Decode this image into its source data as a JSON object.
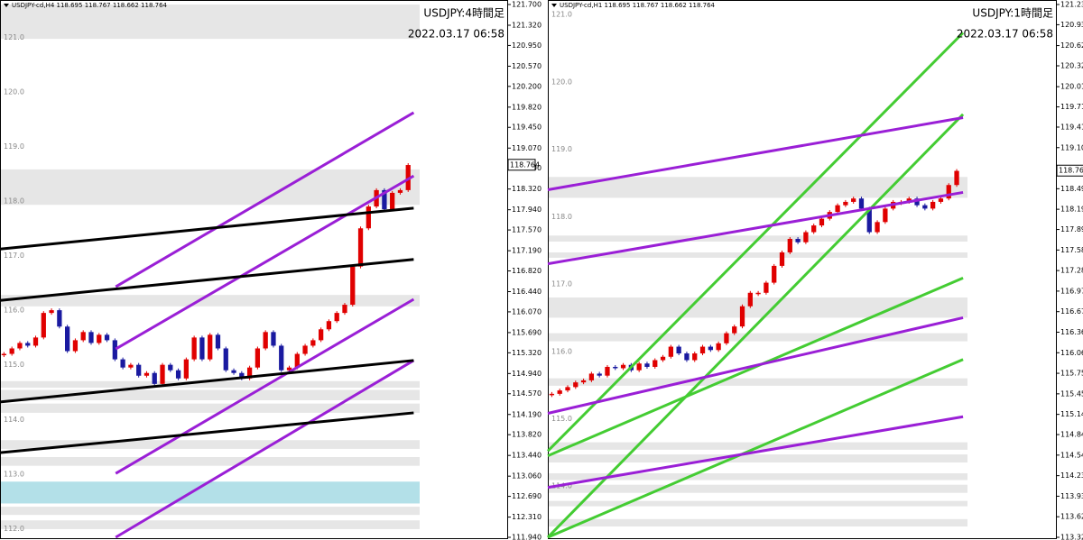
{
  "chart_data": [
    {
      "type": "candlestick",
      "title": "USDJPY-cd,H4  118.695 118.767 118.662 118.764",
      "caption": "USDJPY:4時間足",
      "timestamp": "2022.03.17 06:58",
      "last": 118.764,
      "up_color": "#e00000",
      "down_color": "#1a1aa0",
      "xlim": [
        0,
        64
      ],
      "ylim": [
        111.94,
        121.7
      ],
      "yticks": [
        {
          "value": 121.7,
          "label": "121.700"
        },
        {
          "value": 121.32,
          "label": "121.320"
        },
        {
          "value": 120.95,
          "label": "120.950"
        },
        {
          "value": 120.57,
          "label": "120.570"
        },
        {
          "value": 120.2,
          "label": "120.200"
        },
        {
          "value": 119.82,
          "label": "119.820"
        },
        {
          "value": 119.45,
          "label": "119.450"
        },
        {
          "value": 119.07,
          "label": "119.070"
        },
        {
          "value": 118.7,
          "label": "118.700"
        },
        {
          "value": 118.32,
          "label": "118.320"
        },
        {
          "value": 117.94,
          "label": "117.940"
        },
        {
          "value": 117.57,
          "label": "117.570"
        },
        {
          "value": 117.19,
          "label": "117.190"
        },
        {
          "value": 116.82,
          "label": "116.820"
        },
        {
          "value": 116.44,
          "label": "116.440"
        },
        {
          "value": 116.07,
          "label": "116.070"
        },
        {
          "value": 115.69,
          "label": "115.690"
        },
        {
          "value": 115.32,
          "label": "115.320"
        },
        {
          "value": 114.94,
          "label": "114.940"
        },
        {
          "value": 114.57,
          "label": "114.570"
        },
        {
          "value": 114.19,
          "label": "114.190"
        },
        {
          "value": 113.82,
          "label": "113.820"
        },
        {
          "value": 113.44,
          "label": "113.440"
        },
        {
          "value": 113.06,
          "label": "113.060"
        },
        {
          "value": 112.69,
          "label": "112.690"
        },
        {
          "value": 112.31,
          "label": "112.310"
        },
        {
          "value": 111.94,
          "label": "111.940"
        }
      ],
      "levels": [
        {
          "value": 121,
          "label": "121.0"
        },
        {
          "value": 120,
          "label": "120.0"
        },
        {
          "value": 119,
          "label": "119.0"
        },
        {
          "value": 118,
          "label": "118.0"
        },
        {
          "value": 117,
          "label": "117.0"
        },
        {
          "value": 116,
          "label": "116.0"
        },
        {
          "value": 115,
          "label": "115.0"
        },
        {
          "value": 114,
          "label": "114.0"
        },
        {
          "value": 113,
          "label": "113.0"
        },
        {
          "value": 112,
          "label": "112.0"
        }
      ],
      "zones": [
        {
          "range": [
            121.07,
            121.7
          ],
          "color": "#e6e6e6"
        },
        {
          "range": [
            118.03,
            118.68
          ],
          "color": "#e6e6e6"
        },
        {
          "range": [
            116.17,
            116.38
          ],
          "color": "#e6e6e6"
        },
        {
          "range": [
            114.68,
            114.8
          ],
          "color": "#e6e6e6"
        },
        {
          "range": [
            114.45,
            114.64
          ],
          "color": "#e6e6e6"
        },
        {
          "range": [
            114.22,
            114.39
          ],
          "color": "#e6e6e6"
        },
        {
          "range": [
            113.56,
            113.72
          ],
          "color": "#e6e6e6"
        },
        {
          "range": [
            113.25,
            113.41
          ],
          "color": "#e6e6e6"
        },
        {
          "range": [
            112.56,
            112.96
          ],
          "color": "#b3e0e8"
        },
        {
          "range": [
            112.35,
            112.5
          ],
          "color": "#e6e6e6"
        },
        {
          "range": [
            112.09,
            112.25
          ],
          "color": "#e6e6e6"
        }
      ],
      "values": [
        115.3,
        115.4,
        115.5,
        115.45,
        115.6,
        116.05,
        116.1,
        115.8,
        115.35,
        115.55,
        115.7,
        115.5,
        115.65,
        115.55,
        115.2,
        115.05,
        115.1,
        114.9,
        114.95,
        114.75,
        115.1,
        115.0,
        114.85,
        115.2,
        115.6,
        115.2,
        115.65,
        115.4,
        115.0,
        114.95,
        114.85,
        115.05,
        115.4,
        115.7,
        115.45,
        115.0,
        115.05,
        115.3,
        115.45,
        115.55,
        115.75,
        115.9,
        116.05,
        116.2,
        116.9,
        117.6,
        118.0,
        118.3,
        117.95,
        118.25,
        118.3,
        118.76
      ],
      "lines": [
        {
          "color": "#9a1fd6",
          "x": [
            14.6,
            52.2
          ],
          "y": [
            116.53,
            119.72
          ]
        },
        {
          "color": "#9a1fd6",
          "x": [
            14.6,
            52.2
          ],
          "y": [
            115.39,
            118.56
          ]
        },
        {
          "color": "#9a1fd6",
          "x": [
            14.6,
            52.2
          ],
          "y": [
            113.11,
            116.3
          ]
        },
        {
          "color": "#9a1fd6",
          "x": [
            14.6,
            52.2
          ],
          "y": [
            111.94,
            115.18
          ]
        },
        {
          "color": "#000000",
          "x": [
            0,
            52.2
          ],
          "y": [
            117.22,
            117.97
          ]
        },
        {
          "color": "#000000",
          "x": [
            0,
            52.2
          ],
          "y": [
            116.28,
            117.03
          ]
        },
        {
          "color": "#000000",
          "x": [
            0,
            52.2
          ],
          "y": [
            114.42,
            115.18
          ]
        },
        {
          "color": "#000000",
          "x": [
            0,
            52.2
          ],
          "y": [
            113.49,
            114.22
          ]
        }
      ]
    },
    {
      "type": "candlestick",
      "title": "USDJPY-cd,H1  118.695 118.767 118.662 118.764",
      "caption": "USDJPY:1時間足",
      "timestamp": "2022.03.17 06:58",
      "last": 118.764,
      "up_color": "#e00000",
      "down_color": "#1a1aa0",
      "xlim": [
        0,
        64
      ],
      "ylim": [
        113.32,
        121.23
      ],
      "yticks": [
        {
          "value": 121.23,
          "label": "121.230"
        },
        {
          "value": 120.93,
          "label": "120.930"
        },
        {
          "value": 120.62,
          "label": "120.620"
        },
        {
          "value": 120.32,
          "label": "120.320"
        },
        {
          "value": 120.01,
          "label": "120.010"
        },
        {
          "value": 119.71,
          "label": "119.710"
        },
        {
          "value": 119.41,
          "label": "119.410"
        },
        119.105,
        118.495,
        {
          "value": 118.19,
          "label": "118.190"
        },
        {
          "value": 117.89,
          "label": "117.890"
        },
        117.585,
        {
          "value": 117.28,
          "label": "117.280"
        },
        116.975,
        {
          "value": 116.67,
          "label": "116.670"
        },
        116.365,
        {
          "value": 116.06,
          "label": "116.060"
        },
        115.755,
        {
          "value": 115.45,
          "label": "115.450"
        },
        115.145,
        114.845,
        {
          "value": 114.54,
          "label": "114.540"
        },
        114.235,
        {
          "value": 113.93,
          "label": "113.930"
        },
        113.625,
        {
          "value": 113.32,
          "label": "113.320"
        }
      ],
      "levels": [
        {
          "value": 121,
          "label": "121.0"
        },
        {
          "value": 120,
          "label": "120.0"
        },
        {
          "value": 119,
          "label": "119.0"
        },
        {
          "value": 118,
          "label": "118.0"
        },
        {
          "value": 117,
          "label": "117.0"
        },
        {
          "value": 116,
          "label": "116.0"
        },
        {
          "value": 115,
          "label": "115.0"
        },
        {
          "value": 114,
          "label": "114.0"
        }
      ],
      "zones": [
        {
          "range": [
            118.36,
            118.67
          ],
          "color": "#e6e6e6"
        },
        {
          "range": [
            117.71,
            117.8
          ],
          "color": "#e6e6e6"
        },
        {
          "range": [
            117.47,
            117.55
          ],
          "color": "#e6e6e6"
        },
        {
          "range": [
            116.58,
            116.88
          ],
          "color": "#e6e6e6"
        },
        {
          "range": [
            116.23,
            116.35
          ],
          "color": "#e6e6e6"
        },
        {
          "range": [
            115.57,
            115.68
          ],
          "color": "#e6e6e6"
        },
        {
          "range": [
            114.62,
            114.73
          ],
          "color": "#e6e6e6"
        },
        {
          "range": [
            114.43,
            114.55
          ],
          "color": "#e6e6e6"
        },
        {
          "range": [
            114.17,
            114.27
          ],
          "color": "#e6e6e6"
        },
        {
          "range": [
            113.98,
            114.1
          ],
          "color": "#e6e6e6"
        },
        {
          "range": [
            113.78,
            113.86
          ],
          "color": "#e6e6e6"
        },
        {
          "range": [
            113.48,
            113.59
          ],
          "color": "#e6e6e6"
        }
      ],
      "values": [
        115.45,
        115.5,
        115.55,
        115.62,
        115.65,
        115.75,
        115.72,
        115.85,
        115.83,
        115.88,
        115.8,
        115.9,
        115.85,
        115.95,
        116.0,
        116.15,
        116.05,
        115.95,
        116.05,
        116.15,
        116.1,
        116.2,
        116.35,
        116.45,
        116.75,
        116.95,
        116.95,
        117.1,
        117.35,
        117.55,
        117.75,
        117.7,
        117.85,
        117.95,
        118.05,
        118.15,
        118.25,
        118.3,
        118.35,
        118.2,
        117.85,
        118.0,
        118.2,
        118.3,
        118.3,
        118.35,
        118.25,
        118.2,
        118.3,
        118.35,
        118.55,
        118.76
      ],
      "lines": [
        {
          "color": "#44cc33",
          "x": [
            0,
            52.3
          ],
          "y": [
            114.6,
            120.81
          ]
        },
        {
          "color": "#44cc33",
          "x": [
            0,
            52.3
          ],
          "y": [
            113.32,
            119.6
          ]
        },
        {
          "color": "#44cc33",
          "x": [
            0,
            52.3
          ],
          "y": [
            114.53,
            117.17
          ]
        },
        {
          "color": "#44cc33",
          "x": [
            0,
            52.3
          ],
          "y": [
            113.32,
            115.96
          ]
        },
        {
          "color": "#9a1fd6",
          "x": [
            0,
            52.3
          ],
          "y": [
            118.48,
            119.55
          ]
        },
        {
          "color": "#9a1fd6",
          "x": [
            0,
            52.3
          ],
          "y": [
            117.38,
            118.44
          ]
        },
        {
          "color": "#9a1fd6",
          "x": [
            0,
            52.3
          ],
          "y": [
            115.16,
            116.58
          ]
        },
        {
          "color": "#9a1fd6",
          "x": [
            0,
            52.3
          ],
          "y": [
            114.06,
            115.11
          ]
        }
      ]
    }
  ]
}
